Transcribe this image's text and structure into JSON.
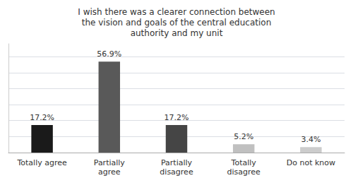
{
  "chart_data": {
    "type": "bar",
    "title": "I wish there was a clearer connection between\nthe vision and goals of the central education\nauthority and my unit",
    "categories": [
      "Totally agree",
      "Partially\nagree",
      "Partially\ndisagree",
      "Totally\ndisagree",
      "Do not know"
    ],
    "values": [
      17.2,
      56.9,
      17.2,
      5.2,
      3.4
    ],
    "value_labels": [
      "17.2%",
      "56.9%",
      "17.2%",
      "5.2%",
      "3.4%"
    ],
    "colors": [
      "#1a1a1a",
      "#595959",
      "#454545",
      "#c0c0c0",
      "#cccccc"
    ],
    "ylim": [
      0,
      68
    ],
    "yticks": [
      0,
      10,
      20,
      30,
      40,
      50,
      60
    ],
    "grid": true,
    "data_labels": true,
    "tick_labels": "x"
  }
}
